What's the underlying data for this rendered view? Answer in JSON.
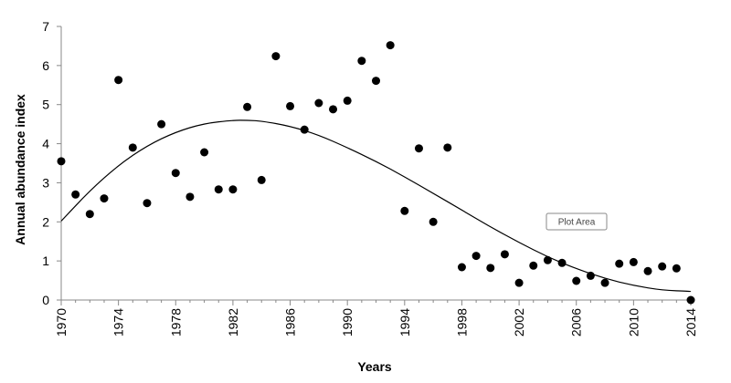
{
  "chart_data": {
    "type": "scatter",
    "xlabel": "Years",
    "ylabel": "Annual abundance index",
    "xlim": [
      1970,
      2014
    ],
    "ylim": [
      0,
      7
    ],
    "x_ticks": [
      "1970",
      "1974",
      "1978",
      "1982",
      "1986",
      "1990",
      "1994",
      "1998",
      "2002",
      "2006",
      "2010",
      "2014"
    ],
    "y_ticks": [
      "0",
      "1",
      "2",
      "3",
      "4",
      "5",
      "6",
      "7"
    ],
    "grid": false,
    "points": [
      {
        "x": 1970,
        "y": 3.55
      },
      {
        "x": 1971,
        "y": 2.7
      },
      {
        "x": 1972,
        "y": 2.2
      },
      {
        "x": 1973,
        "y": 2.6
      },
      {
        "x": 1974,
        "y": 5.63
      },
      {
        "x": 1975,
        "y": 3.9
      },
      {
        "x": 1976,
        "y": 2.48
      },
      {
        "x": 1977,
        "y": 4.5
      },
      {
        "x": 1978,
        "y": 3.25
      },
      {
        "x": 1979,
        "y": 2.64
      },
      {
        "x": 1980,
        "y": 3.78
      },
      {
        "x": 1981,
        "y": 2.83
      },
      {
        "x": 1982,
        "y": 2.83
      },
      {
        "x": 1983,
        "y": 4.94
      },
      {
        "x": 1984,
        "y": 3.07
      },
      {
        "x": 1985,
        "y": 6.24
      },
      {
        "x": 1986,
        "y": 4.96
      },
      {
        "x": 1987,
        "y": 4.36
      },
      {
        "x": 1988,
        "y": 5.04
      },
      {
        "x": 1989,
        "y": 4.88
      },
      {
        "x": 1990,
        "y": 5.1
      },
      {
        "x": 1991,
        "y": 6.12
      },
      {
        "x": 1992,
        "y": 5.61
      },
      {
        "x": 1993,
        "y": 6.52
      },
      {
        "x": 1994,
        "y": 2.28
      },
      {
        "x": 1995,
        "y": 3.88
      },
      {
        "x": 1996,
        "y": 2.0
      },
      {
        "x": 1997,
        "y": 3.9
      },
      {
        "x": 1998,
        "y": 0.84
      },
      {
        "x": 1999,
        "y": 1.13
      },
      {
        "x": 2000,
        "y": 0.82
      },
      {
        "x": 2001,
        "y": 1.17
      },
      {
        "x": 2002,
        "y": 0.44
      },
      {
        "x": 2003,
        "y": 0.88
      },
      {
        "x": 2004,
        "y": 1.02
      },
      {
        "x": 2005,
        "y": 0.95
      },
      {
        "x": 2006,
        "y": 0.49
      },
      {
        "x": 2007,
        "y": 0.62
      },
      {
        "x": 2008,
        "y": 0.44
      },
      {
        "x": 2009,
        "y": 0.93
      },
      {
        "x": 2010,
        "y": 0.97
      },
      {
        "x": 2011,
        "y": 0.74
      },
      {
        "x": 2012,
        "y": 0.86
      },
      {
        "x": 2013,
        "y": 0.81
      },
      {
        "x": 2014,
        "y": 0.0
      }
    ],
    "trend": {
      "type": "polynomial",
      "x": [
        1970,
        1972,
        1974,
        1976,
        1978,
        1980,
        1982,
        1983,
        1984,
        1986,
        1988,
        1990,
        1992,
        1994,
        1996,
        1998,
        2000,
        2002,
        2004,
        2006,
        2008,
        2010,
        2012,
        2014
      ],
      "y": [
        2.02,
        2.8,
        3.45,
        3.95,
        4.3,
        4.52,
        4.6,
        4.6,
        4.58,
        4.45,
        4.22,
        3.9,
        3.55,
        3.15,
        2.73,
        2.3,
        1.87,
        1.47,
        1.1,
        0.8,
        0.55,
        0.37,
        0.25,
        0.22
      ]
    },
    "annotation": {
      "text": "Plot Area",
      "x": 2004.7,
      "y": 2.0
    },
    "marker_color": "#000000",
    "line_color": "#000000"
  }
}
